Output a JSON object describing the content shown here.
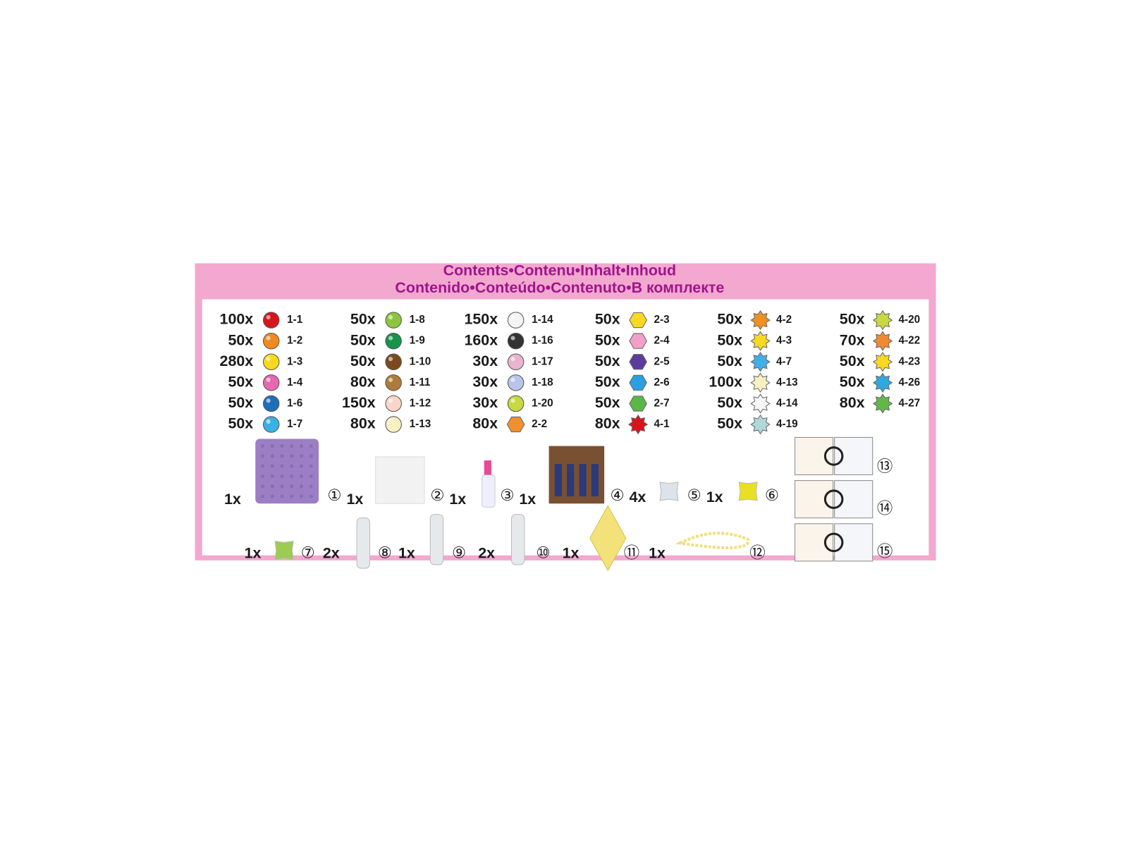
{
  "header": {
    "title_lines": [
      "Contents•Contenu•Inhalt•Inhoud",
      "Contenido•Conteúdo•Contenuto•В комплекте"
    ]
  },
  "beads": {
    "columns": [
      [
        {
          "qty": "100x",
          "code": "1-1",
          "color": "#d9141c",
          "shape": "ball"
        },
        {
          "qty": "50x",
          "code": "1-2",
          "color": "#f08a1e",
          "shape": "ball"
        },
        {
          "qty": "280x",
          "code": "1-3",
          "color": "#f7d81a",
          "shape": "ball"
        },
        {
          "qty": "50x",
          "code": "1-4",
          "color": "#e868b0",
          "shape": "ball"
        },
        {
          "qty": "50x",
          "code": "1-6",
          "color": "#1d6fba",
          "shape": "ball"
        },
        {
          "qty": "50x",
          "code": "1-7",
          "color": "#3ab0e8",
          "shape": "ball"
        }
      ],
      [
        {
          "qty": "50x",
          "code": "1-8",
          "color": "#8cc63f",
          "shape": "ball"
        },
        {
          "qty": "50x",
          "code": "1-9",
          "color": "#18944a",
          "shape": "ball"
        },
        {
          "qty": "50x",
          "code": "1-10",
          "color": "#7a4a1e",
          "shape": "ball"
        },
        {
          "qty": "80x",
          "code": "1-11",
          "color": "#b07a3a",
          "shape": "ball"
        },
        {
          "qty": "150x",
          "code": "1-12",
          "color": "#f6d6c8",
          "shape": "ball"
        },
        {
          "qty": "80x",
          "code": "1-13",
          "color": "#f8f0c0",
          "shape": "ball"
        }
      ],
      [
        {
          "qty": "150x",
          "code": "1-14",
          "color": "#f4f4f4",
          "shape": "ball"
        },
        {
          "qty": "160x",
          "code": "1-16",
          "color": "#333333",
          "shape": "ball"
        },
        {
          "qty": "30x",
          "code": "1-17",
          "color": "#eab4d0",
          "shape": "ball"
        },
        {
          "qty": "30x",
          "code": "1-18",
          "color": "#b8c4e8",
          "shape": "ball"
        },
        {
          "qty": "30x",
          "code": "1-20",
          "color": "#c8d840",
          "shape": "ball"
        },
        {
          "qty": "80x",
          "code": "2-2",
          "color": "#f09030",
          "shape": "hex"
        }
      ],
      [
        {
          "qty": "50x",
          "code": "2-3",
          "color": "#f8d820",
          "shape": "hex"
        },
        {
          "qty": "50x",
          "code": "2-4",
          "color": "#f2a0c8",
          "shape": "hex"
        },
        {
          "qty": "50x",
          "code": "2-5",
          "color": "#5a3c9c",
          "shape": "hex"
        },
        {
          "qty": "50x",
          "code": "2-6",
          "color": "#2aa0e0",
          "shape": "hex"
        },
        {
          "qty": "50x",
          "code": "2-7",
          "color": "#5ab848",
          "shape": "hex"
        },
        {
          "qty": "80x",
          "code": "4-1",
          "color": "#d8141c",
          "shape": "star"
        }
      ],
      [
        {
          "qty": "50x",
          "code": "4-2",
          "color": "#f09020",
          "shape": "star"
        },
        {
          "qty": "50x",
          "code": "4-3",
          "color": "#f8d820",
          "shape": "star"
        },
        {
          "qty": "50x",
          "code": "4-7",
          "color": "#40b0e8",
          "shape": "star"
        },
        {
          "qty": "100x",
          "code": "4-13",
          "color": "#f8f0c0",
          "shape": "star"
        },
        {
          "qty": "50x",
          "code": "4-14",
          "color": "#f6f6f6",
          "shape": "star"
        },
        {
          "qty": "50x",
          "code": "4-19",
          "color": "#b0d8d8",
          "shape": "star"
        }
      ],
      [
        {
          "qty": "50x",
          "code": "4-20",
          "color": "#c8d840",
          "shape": "star"
        },
        {
          "qty": "70x",
          "code": "4-22",
          "color": "#f08a30",
          "shape": "star"
        },
        {
          "qty": "50x",
          "code": "4-23",
          "color": "#f8d820",
          "shape": "star"
        },
        {
          "qty": "50x",
          "code": "4-26",
          "color": "#30a8e0",
          "shape": "star"
        },
        {
          "qty": "80x",
          "code": "4-27",
          "color": "#60b848",
          "shape": "star"
        }
      ]
    ]
  },
  "accessories": {
    "items": [
      {
        "qty": "1x",
        "number": "①"
      },
      {
        "qty": "1x",
        "number": "②"
      },
      {
        "qty": "1x",
        "number": "③"
      },
      {
        "qty": "1x",
        "number": "④"
      },
      {
        "qty": "4x",
        "number": "⑤"
      },
      {
        "qty": "1x",
        "number": "⑥"
      },
      {
        "qty": "1x",
        "number": "⑦"
      },
      {
        "qty": "2x",
        "number": "⑧"
      },
      {
        "qty": "1x",
        "number": "⑨"
      },
      {
        "qty": "2x",
        "number": "⑩"
      },
      {
        "qty": "1x",
        "number": "⑪"
      },
      {
        "qty": "1x",
        "number": "⑫"
      },
      {
        "number": "⑬"
      },
      {
        "number": "⑭"
      },
      {
        "number": "⑮"
      }
    ]
  }
}
